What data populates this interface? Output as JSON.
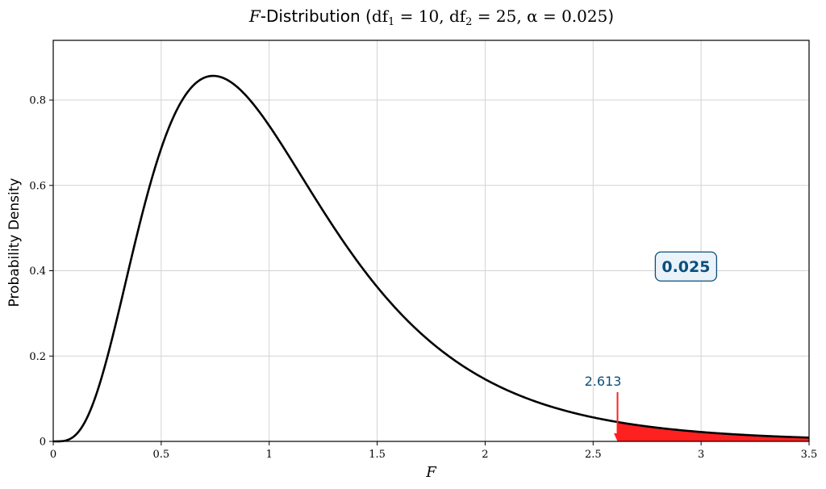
{
  "chart_data": {
    "type": "line",
    "title": {
      "prefix": "F",
      "rest": "-Distribution (",
      "df1_label": "df",
      "df1_sub": "1",
      "df1_eq": " = 10, ",
      "df2_label": "df",
      "df2_sub": "2",
      "df2_eq": " = 25, ",
      "alpha": "α = 0.025",
      "close": ")"
    },
    "xlabel": "F",
    "ylabel": "Probability Density",
    "xlim": [
      0,
      3.5
    ],
    "ylim": [
      0,
      0.94
    ],
    "x_ticks": [
      0,
      0.5,
      1,
      1.5,
      2,
      2.5,
      3,
      3.5
    ],
    "x_tick_labels": [
      "0",
      "0.5",
      "1",
      "1.5",
      "2",
      "2.5",
      "3",
      "3.5"
    ],
    "y_ticks": [
      0,
      0.2,
      0.4,
      0.6,
      0.8
    ],
    "y_tick_labels": [
      "0",
      "0.2",
      "0.4",
      "0.6",
      "0.8"
    ],
    "grid": true,
    "distribution": {
      "df1": 10,
      "df2": 25,
      "alpha": 0.025
    },
    "critical_value": 2.613,
    "critical_label": "2.613",
    "tail_area_label": "0.025",
    "tail_label_position": {
      "x": 2.93,
      "y": 0.41
    },
    "curve_color": "#000000",
    "tail_fill_color": "#ff2020",
    "annotation_color": "#0b4f7a",
    "label_box_fill": "#eaf2fa"
  }
}
